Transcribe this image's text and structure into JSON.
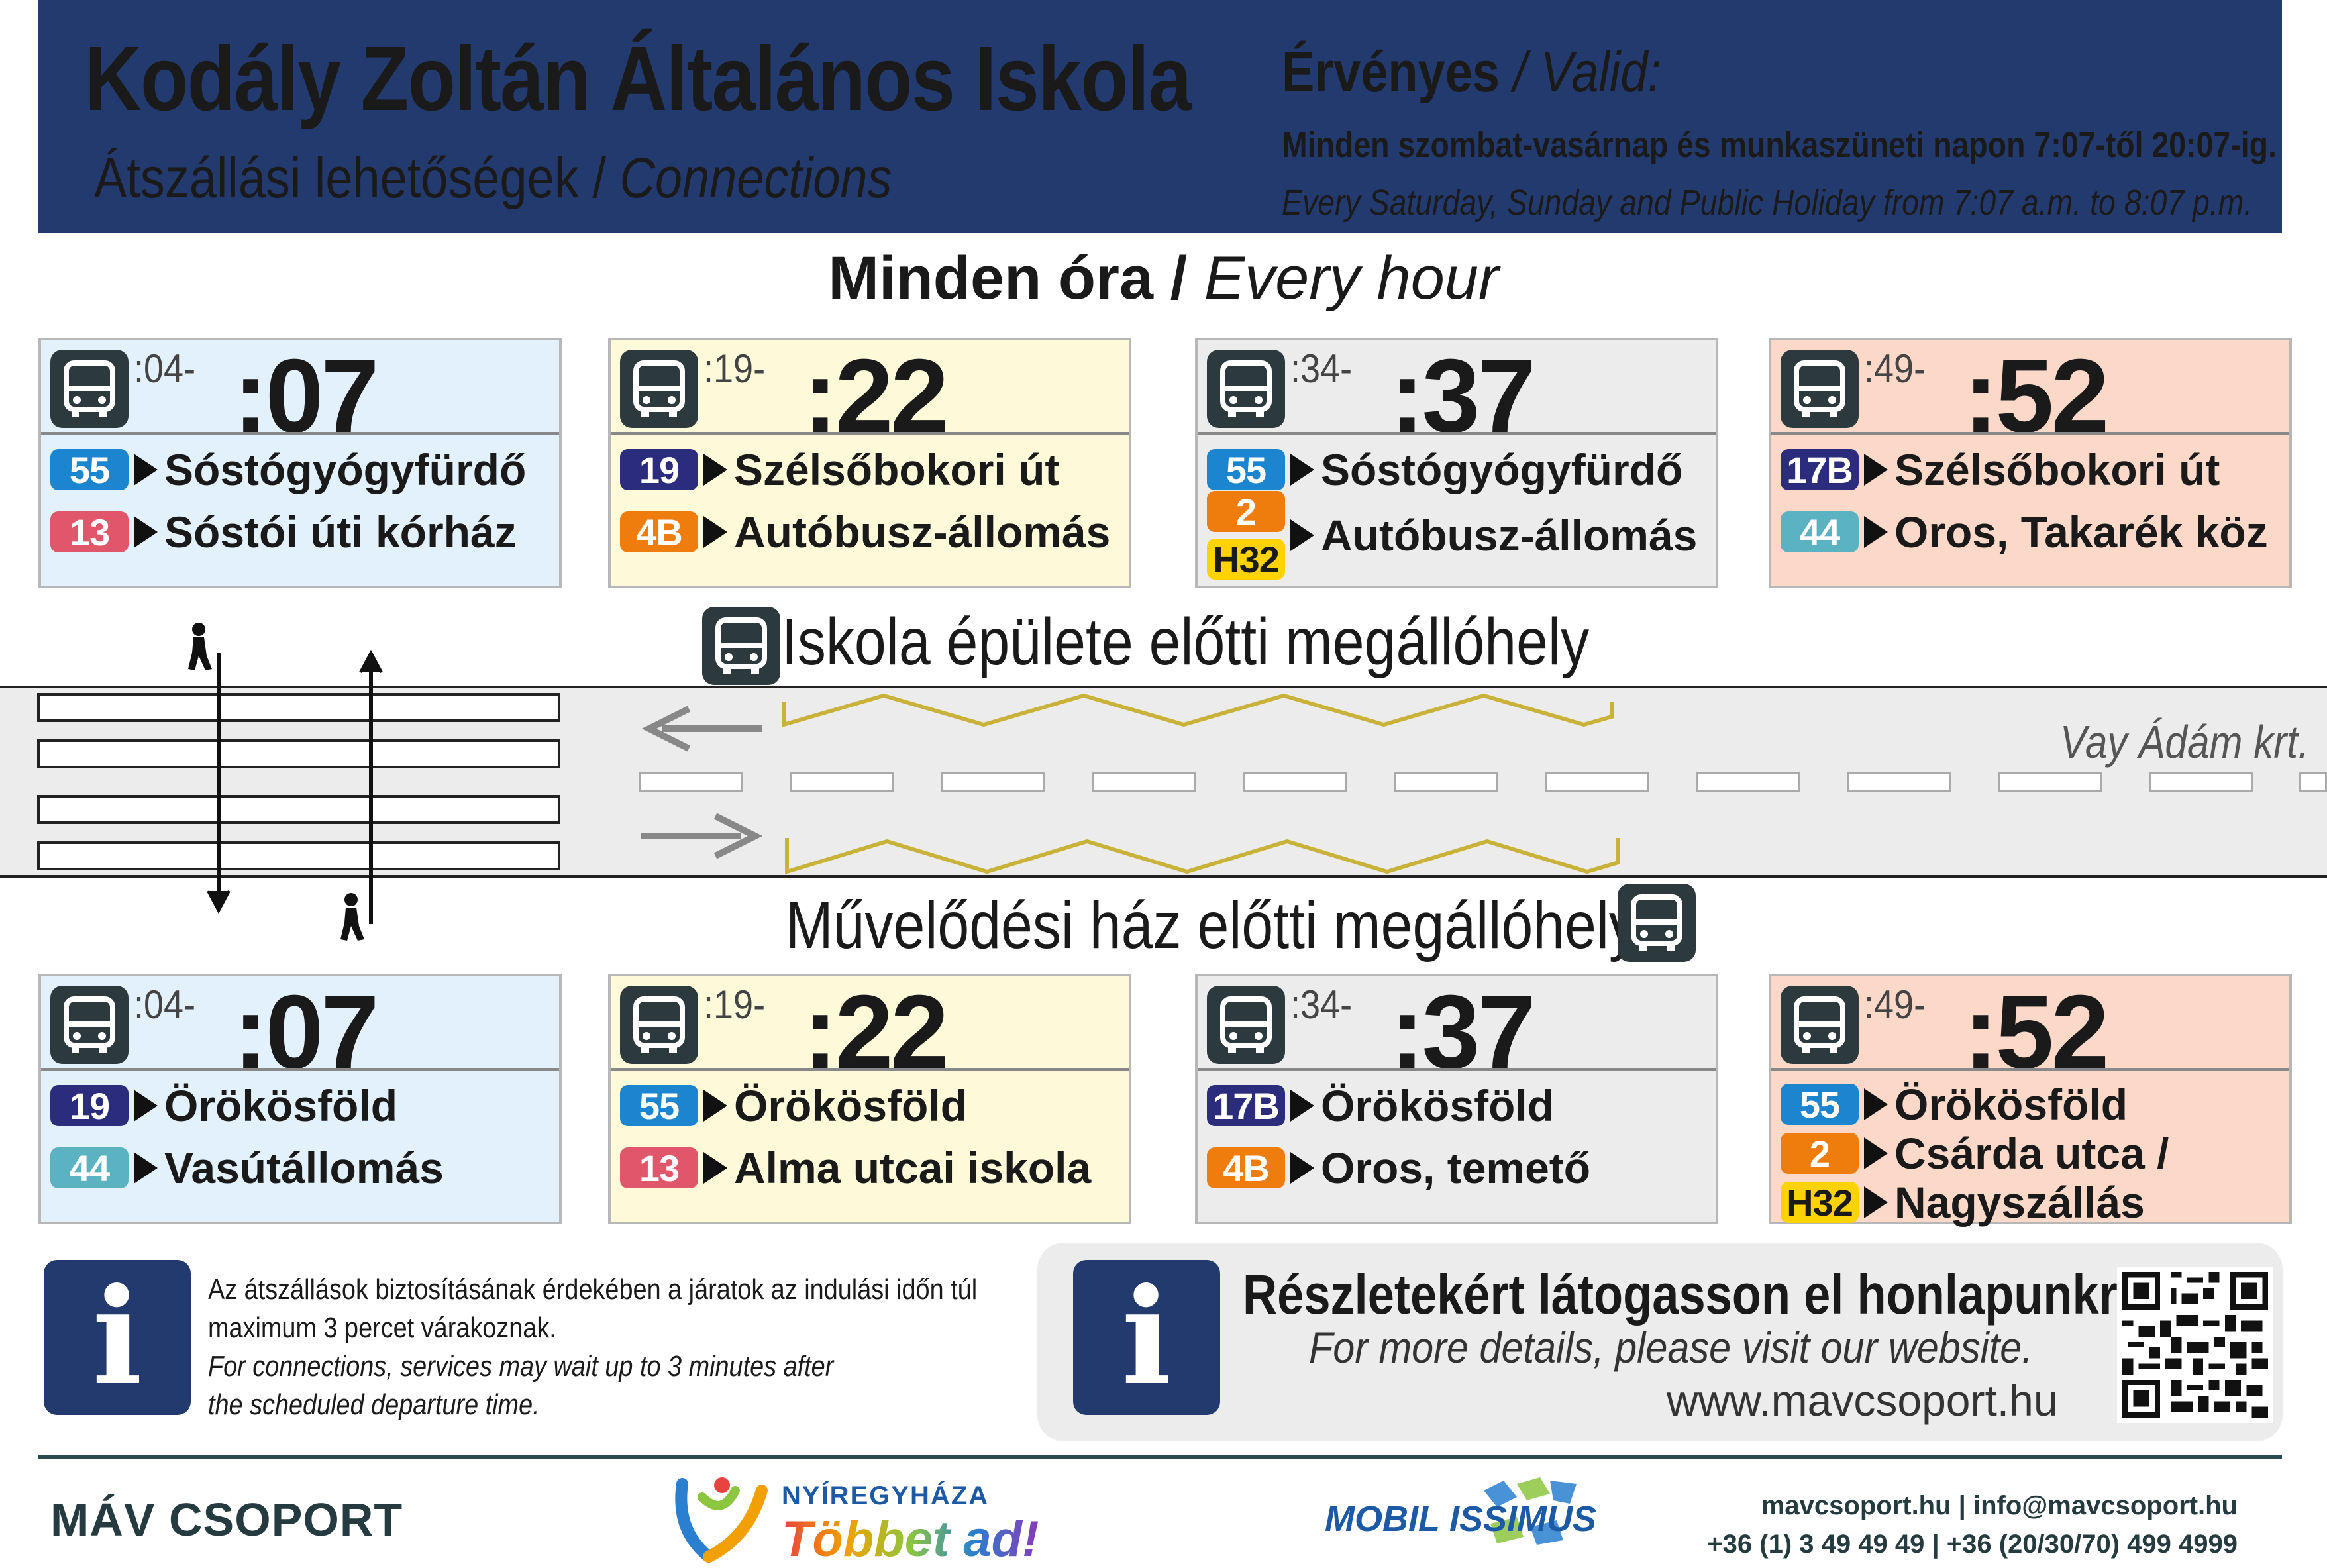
{
  "header": {
    "title": "Kodály Zoltán Általános Iskola",
    "subtitle_hu": "Átszállási lehetőségek / ",
    "subtitle_en": "Connections",
    "valid_hu": "Érvényes",
    "valid_en": " / Valid:",
    "validity_hu": "Minden szombat-vasárnap és munkaszüneti napon 7:07-től 20:07-ig.",
    "validity_en": "Every Saturday, Sunday and Public Holiday from 7:07 a.m. to 8:07 p.m."
  },
  "every_hour": {
    "hu": "Minden óra / ",
    "en": "Every hour"
  },
  "top_stop": {
    "label": "Iskola épülete előtti megállóhely",
    "icon": "bus-icon"
  },
  "bottom_stop": {
    "label": "Művelődési ház előtti megállóhely",
    "icon": "bus-icon"
  },
  "road_name": "Vay Ádám krt.",
  "top_cards": [
    {
      "pre": ":04-",
      "time": ":07",
      "color": "#e3f1fc",
      "rows": [
        {
          "routes": [
            "55"
          ],
          "dest": "Sóstógyógyfürdő"
        },
        {
          "routes": [
            "13"
          ],
          "dest": "Sóstói úti kórház"
        }
      ]
    },
    {
      "pre": ":19-",
      "time": ":22",
      "color": "#fdf9d9",
      "rows": [
        {
          "routes": [
            "19"
          ],
          "dest": "Szélsőbokori út"
        },
        {
          "routes": [
            "4B"
          ],
          "dest": "Autóbusz-állomás"
        }
      ]
    },
    {
      "pre": ":34-",
      "time": ":37",
      "color": "#ececec",
      "rows": [
        {
          "routes": [
            "55"
          ],
          "dest": "Sóstógyógyfürdő"
        },
        {
          "routes": [
            "2",
            "H32"
          ],
          "dest": "Autóbusz-állomás"
        }
      ]
    },
    {
      "pre": ":49-",
      "time": ":52",
      "color": "#fbd8c8",
      "rows": [
        {
          "routes": [
            "17B"
          ],
          "dest": "Szélsőbokori út"
        },
        {
          "routes": [
            "44"
          ],
          "dest": "Oros, Takarék köz"
        }
      ]
    }
  ],
  "bottom_cards": [
    {
      "pre": ":04-",
      "time": ":07",
      "color": "#e3f1fc",
      "rows": [
        {
          "routes": [
            "19"
          ],
          "dest": "Örökösföld"
        },
        {
          "routes": [
            "44"
          ],
          "dest": "Vasútállomás"
        }
      ]
    },
    {
      "pre": ":19-",
      "time": ":22",
      "color": "#fdf9d9",
      "rows": [
        {
          "routes": [
            "55"
          ],
          "dest": "Örökösföld"
        },
        {
          "routes": [
            "13"
          ],
          "dest": "Alma utcai iskola"
        }
      ]
    },
    {
      "pre": ":34-",
      "time": ":37",
      "color": "#ececec",
      "rows": [
        {
          "routes": [
            "17B"
          ],
          "dest": "Örökösföld"
        },
        {
          "routes": [
            "4B"
          ],
          "dest": "Oros, temető"
        }
      ]
    },
    {
      "pre": ":49-",
      "time": ":52",
      "color": "#fbd8c8",
      "rows": [
        {
          "routes": [
            "55"
          ],
          "dest": "Örökösföld"
        },
        {
          "routes": [
            "2"
          ],
          "dest": "Csárda utca /"
        },
        {
          "routes": [
            "H32"
          ],
          "dest": "Nagyszállás"
        }
      ]
    }
  ],
  "route_colors": {
    "55": "#1c85cf",
    "13": "#e0566a",
    "19": "#2b2d7c",
    "4B": "#ef7d0d",
    "2": "#ef7d0d",
    "H32": "#ffd200",
    "17B": "#2b2d7c",
    "44": "#5bb3c2"
  },
  "info_left": {
    "icon": "info-icon",
    "line1": "Az átszállások biztosításának érdekében a járatok az indulási időn túl",
    "line2": "maximum 3 percet várakoznak.",
    "line3": "For connections, services may wait up to 3 minutes after",
    "line4": "the scheduled departure time."
  },
  "info_right": {
    "icon": "info-icon",
    "title": "Részletekért látogasson el honlapunkra.",
    "subtitle": "For more details, please visit our website.",
    "url": "www.mavcsoport.hu",
    "qr": "qr-code-icon"
  },
  "footer": {
    "mav_logo": "MÁV CSOPORT",
    "nyir_small": "NYÍREGYHÁZA",
    "nyir_big": "Többet ad!",
    "mobil": "MOBIL ISSIMUS",
    "contact_line1": "mavcsoport.hu | info@mavcsoport.hu",
    "contact_line2": "+36 (1) 3 49 49 49 | +36 (20/30/70) 499 4999"
  }
}
